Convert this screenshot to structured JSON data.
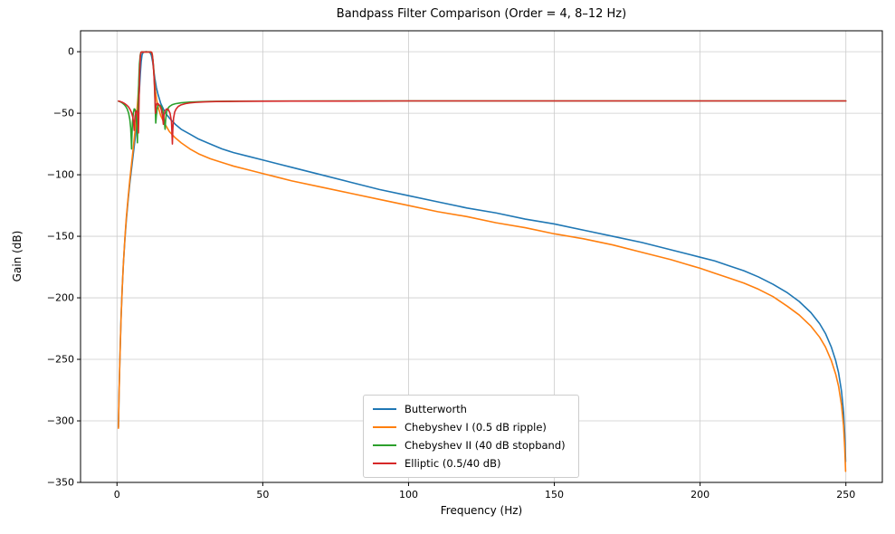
{
  "chart_data": {
    "type": "line",
    "title": "Bandpass Filter Comparison (Order = 4, 8–12 Hz)",
    "xlabel": "Frequency (Hz)",
    "ylabel": "Gain (dB)",
    "xlim": [
      -12.5,
      262.5
    ],
    "ylim": [
      -350,
      17
    ],
    "xticks": [
      0,
      50,
      100,
      150,
      200,
      250
    ],
    "yticks": [
      -350,
      -300,
      -250,
      -200,
      -150,
      -100,
      -50,
      0
    ],
    "grid": true,
    "legend_position": "lower center",
    "colors": {
      "grid": "#cccccc",
      "spine": "#000000",
      "background": "#ffffff"
    },
    "series": [
      {
        "name": "butterworth",
        "label": "Butterworth",
        "color": "#1f77b4",
        "points": [
          [
            0.5,
            -305
          ],
          [
            0.7,
            -278
          ],
          [
            1,
            -249
          ],
          [
            1.4,
            -216
          ],
          [
            1.8,
            -192
          ],
          [
            2.2,
            -172
          ],
          [
            2.7,
            -153
          ],
          [
            3.2,
            -137
          ],
          [
            3.8,
            -121
          ],
          [
            4.4,
            -107
          ],
          [
            5,
            -95
          ],
          [
            5.6,
            -83
          ],
          [
            6.2,
            -71
          ],
          [
            6.8,
            -58
          ],
          [
            7.3,
            -45
          ],
          [
            7.7,
            -31
          ],
          [
            8,
            -18
          ],
          [
            8.3,
            -8
          ],
          [
            8.6,
            -2.5
          ],
          [
            9,
            -0.5
          ],
          [
            9.5,
            -0.1
          ],
          [
            10,
            0
          ],
          [
            10.5,
            -0.1
          ],
          [
            11,
            -0.3
          ],
          [
            11.4,
            -1
          ],
          [
            11.8,
            -3
          ],
          [
            12.2,
            -8
          ],
          [
            12.6,
            -15
          ],
          [
            13,
            -22
          ],
          [
            13.5,
            -29
          ],
          [
            14,
            -34
          ],
          [
            15,
            -42
          ],
          [
            16,
            -47
          ],
          [
            17,
            -51
          ],
          [
            18,
            -54
          ],
          [
            20,
            -59
          ],
          [
            22,
            -63
          ],
          [
            25,
            -67
          ],
          [
            28,
            -71
          ],
          [
            32,
            -75
          ],
          [
            36,
            -79
          ],
          [
            40,
            -82
          ],
          [
            45,
            -85
          ],
          [
            50,
            -88
          ],
          [
            55,
            -91
          ],
          [
            60,
            -94
          ],
          [
            70,
            -100
          ],
          [
            80,
            -106
          ],
          [
            90,
            -112
          ],
          [
            100,
            -117
          ],
          [
            110,
            -122
          ],
          [
            120,
            -127
          ],
          [
            130,
            -131
          ],
          [
            140,
            -136
          ],
          [
            150,
            -140
          ],
          [
            160,
            -145
          ],
          [
            170,
            -150
          ],
          [
            180,
            -155
          ],
          [
            190,
            -161
          ],
          [
            200,
            -167
          ],
          [
            205,
            -170
          ],
          [
            210,
            -174
          ],
          [
            215,
            -178
          ],
          [
            220,
            -183
          ],
          [
            225,
            -189
          ],
          [
            230,
            -196
          ],
          [
            234,
            -203
          ],
          [
            238,
            -212
          ],
          [
            241,
            -221
          ],
          [
            243,
            -229
          ],
          [
            245,
            -240
          ],
          [
            246.5,
            -251
          ],
          [
            247.5,
            -261
          ],
          [
            248.5,
            -276
          ],
          [
            249.2,
            -293
          ],
          [
            249.6,
            -311
          ],
          [
            249.9,
            -333
          ]
        ]
      },
      {
        "name": "chebyshev1",
        "label": "Chebyshev I (0.5 dB ripple)",
        "color": "#ff7f0e",
        "points": [
          [
            0.5,
            -306
          ],
          [
            0.7,
            -279
          ],
          [
            1,
            -250
          ],
          [
            1.4,
            -217
          ],
          [
            1.8,
            -192
          ],
          [
            2.2,
            -172
          ],
          [
            2.7,
            -152
          ],
          [
            3.2,
            -135
          ],
          [
            3.8,
            -119
          ],
          [
            4.4,
            -104
          ],
          [
            5,
            -91
          ],
          [
            5.6,
            -78
          ],
          [
            6.2,
            -64
          ],
          [
            6.8,
            -49
          ],
          [
            7.2,
            -37
          ],
          [
            7.6,
            -22
          ],
          [
            7.9,
            -8
          ],
          [
            8.1,
            -1.5
          ],
          [
            8.4,
            -0.2
          ],
          [
            8.8,
            -0.5
          ],
          [
            9.2,
            -0.1
          ],
          [
            9.6,
            -0.4
          ],
          [
            10,
            -0.1
          ],
          [
            10.4,
            -0.4
          ],
          [
            10.8,
            -0.1
          ],
          [
            11.2,
            -0.4
          ],
          [
            11.6,
            -0.1
          ],
          [
            11.9,
            -0.5
          ],
          [
            12.1,
            -2
          ],
          [
            12.4,
            -10
          ],
          [
            12.8,
            -22
          ],
          [
            13.2,
            -32
          ],
          [
            13.6,
            -39
          ],
          [
            14,
            -44
          ],
          [
            15,
            -52
          ],
          [
            16,
            -57
          ],
          [
            17,
            -61
          ],
          [
            18,
            -65
          ],
          [
            20,
            -70
          ],
          [
            22,
            -74
          ],
          [
            25,
            -79
          ],
          [
            28,
            -83
          ],
          [
            32,
            -87
          ],
          [
            36,
            -90
          ],
          [
            40,
            -93
          ],
          [
            45,
            -96
          ],
          [
            50,
            -99
          ],
          [
            55,
            -102
          ],
          [
            60,
            -105
          ],
          [
            70,
            -110
          ],
          [
            80,
            -115
          ],
          [
            90,
            -120
          ],
          [
            100,
            -125
          ],
          [
            110,
            -130
          ],
          [
            120,
            -134
          ],
          [
            130,
            -139
          ],
          [
            140,
            -143
          ],
          [
            150,
            -148
          ],
          [
            160,
            -152
          ],
          [
            170,
            -157
          ],
          [
            180,
            -163
          ],
          [
            190,
            -169
          ],
          [
            200,
            -176
          ],
          [
            205,
            -180
          ],
          [
            210,
            -184
          ],
          [
            215,
            -188
          ],
          [
            220,
            -193
          ],
          [
            225,
            -199
          ],
          [
            230,
            -207
          ],
          [
            234,
            -214
          ],
          [
            238,
            -223
          ],
          [
            241,
            -232
          ],
          [
            243,
            -240
          ],
          [
            245,
            -251
          ],
          [
            246.5,
            -262
          ],
          [
            247.5,
            -272
          ],
          [
            248.5,
            -287
          ],
          [
            249.2,
            -304
          ],
          [
            249.6,
            -322
          ],
          [
            249.9,
            -341
          ]
        ]
      },
      {
        "name": "chebyshev2",
        "label": "Chebyshev II (40 dB stopband)",
        "color": "#2ca02c",
        "points": [
          [
            0.5,
            -40.2
          ],
          [
            1,
            -40.6
          ],
          [
            1.5,
            -41.2
          ],
          [
            2,
            -42
          ],
          [
            2.5,
            -43
          ],
          [
            3,
            -44.5
          ],
          [
            3.5,
            -46.5
          ],
          [
            4,
            -50
          ],
          [
            4.4,
            -55
          ],
          [
            4.7,
            -62
          ],
          [
            4.9,
            -72
          ],
          [
            5.0,
            -79
          ],
          [
            5.1,
            -70
          ],
          [
            5.3,
            -58
          ],
          [
            5.6,
            -50
          ],
          [
            5.9,
            -46.5
          ],
          [
            6.2,
            -47
          ],
          [
            6.5,
            -51
          ],
          [
            6.8,
            -60
          ],
          [
            7.0,
            -74
          ],
          [
            7.1,
            -62
          ],
          [
            7.3,
            -40
          ],
          [
            7.5,
            -22
          ],
          [
            7.7,
            -10
          ],
          [
            8,
            -2.5
          ],
          [
            8.3,
            -0.4
          ],
          [
            8.8,
            -0.1
          ],
          [
            9.3,
            -0.3
          ],
          [
            10,
            0
          ],
          [
            10.7,
            -0.2
          ],
          [
            11.2,
            -0.1
          ],
          [
            11.7,
            -0.6
          ],
          [
            12,
            -2
          ],
          [
            12.3,
            -6
          ],
          [
            12.6,
            -14
          ],
          [
            12.9,
            -28
          ],
          [
            13.1,
            -45
          ],
          [
            13.3,
            -58
          ],
          [
            13.5,
            -52
          ],
          [
            13.8,
            -46
          ],
          [
            14.2,
            -43.5
          ],
          [
            14.8,
            -43.5
          ],
          [
            15.3,
            -45
          ],
          [
            15.8,
            -49
          ],
          [
            16.2,
            -56
          ],
          [
            16.5,
            -63
          ],
          [
            16.7,
            -55
          ],
          [
            17,
            -49
          ],
          [
            17.5,
            -46
          ],
          [
            18,
            -44.5
          ],
          [
            19,
            -43
          ],
          [
            20,
            -42.3
          ],
          [
            22,
            -41.5
          ],
          [
            25,
            -41
          ],
          [
            28,
            -40.7
          ],
          [
            32,
            -40.4
          ],
          [
            36,
            -40.3
          ],
          [
            40,
            -40.2
          ],
          [
            50,
            -40.1
          ],
          [
            60,
            -40.1
          ],
          [
            80,
            -40
          ],
          [
            100,
            -40
          ],
          [
            125,
            -40
          ],
          [
            150,
            -40
          ],
          [
            175,
            -40
          ],
          [
            200,
            -40
          ],
          [
            225,
            -40
          ],
          [
            250,
            -40
          ]
        ]
      },
      {
        "name": "elliptic",
        "label": "Elliptic (0.5/40 dB)",
        "color": "#d62728",
        "points": [
          [
            0.5,
            -40.1
          ],
          [
            1,
            -40.4
          ],
          [
            1.5,
            -40.8
          ],
          [
            2,
            -41.3
          ],
          [
            2.5,
            -42
          ],
          [
            3,
            -42.8
          ],
          [
            3.5,
            -43.8
          ],
          [
            4,
            -45
          ],
          [
            4.5,
            -47
          ],
          [
            5,
            -49.5
          ],
          [
            5.4,
            -53
          ],
          [
            5.7,
            -58
          ],
          [
            5.9,
            -64
          ],
          [
            6.0,
            -58
          ],
          [
            6.2,
            -52
          ],
          [
            6.5,
            -48.5
          ],
          [
            6.8,
            -48
          ],
          [
            7.0,
            -50
          ],
          [
            7.2,
            -56
          ],
          [
            7.35,
            -66
          ],
          [
            7.45,
            -55
          ],
          [
            7.6,
            -35
          ],
          [
            7.8,
            -15
          ],
          [
            8,
            -4
          ],
          [
            8.2,
            -0.6
          ],
          [
            8.6,
            -0.1
          ],
          [
            9,
            -0.5
          ],
          [
            9.5,
            -0.1
          ],
          [
            10,
            -0.4
          ],
          [
            10.5,
            -0.1
          ],
          [
            11,
            -0.4
          ],
          [
            11.5,
            -0.1
          ],
          [
            11.9,
            -0.6
          ],
          [
            12.1,
            -2.5
          ],
          [
            12.4,
            -9
          ],
          [
            12.7,
            -20
          ],
          [
            13,
            -36
          ],
          [
            13.2,
            -50
          ],
          [
            13.4,
            -44
          ],
          [
            13.7,
            -42
          ],
          [
            14.2,
            -42.5
          ],
          [
            14.7,
            -44
          ],
          [
            15.2,
            -47
          ],
          [
            15.6,
            -52
          ],
          [
            15.9,
            -59
          ],
          [
            16.1,
            -52
          ],
          [
            16.5,
            -48
          ],
          [
            17,
            -46.5
          ],
          [
            17.6,
            -47
          ],
          [
            18.2,
            -50
          ],
          [
            18.7,
            -57
          ],
          [
            19.0,
            -75
          ],
          [
            19.15,
            -63
          ],
          [
            19.4,
            -54
          ],
          [
            19.8,
            -49
          ],
          [
            20.3,
            -46.5
          ],
          [
            21,
            -44.5
          ],
          [
            22,
            -43.2
          ],
          [
            23.5,
            -42.2
          ],
          [
            25,
            -41.6
          ],
          [
            27,
            -41.2
          ],
          [
            30,
            -40.8
          ],
          [
            34,
            -40.5
          ],
          [
            38,
            -40.4
          ],
          [
            42,
            -40.3
          ],
          [
            50,
            -40.2
          ],
          [
            60,
            -40.1
          ],
          [
            80,
            -40.1
          ],
          [
            100,
            -40
          ],
          [
            125,
            -40
          ],
          [
            150,
            -40
          ],
          [
            175,
            -40
          ],
          [
            200,
            -40
          ],
          [
            225,
            -40
          ],
          [
            250,
            -40
          ]
        ]
      }
    ]
  }
}
